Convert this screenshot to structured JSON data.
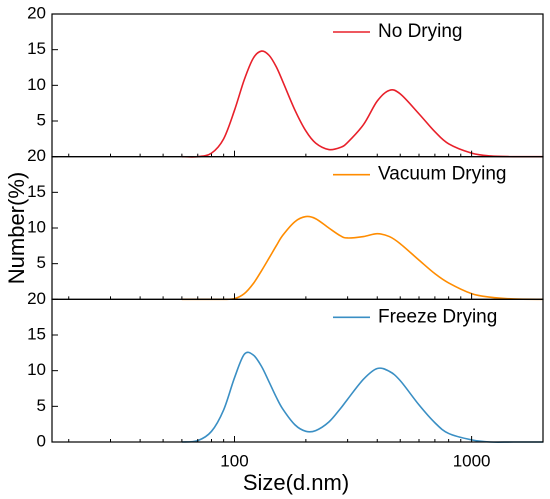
{
  "chart_data": {
    "type": "line",
    "xlabel": "Size(d.nm)",
    "ylabel": "Number(%)",
    "log_x": true,
    "xlim": [
      17,
      2000
    ],
    "xticks": [
      100,
      1000
    ],
    "xticks_minor": [
      20,
      30,
      40,
      50,
      60,
      70,
      80,
      90,
      200,
      300,
      400,
      500,
      600,
      700,
      800,
      900
    ],
    "x": [
      60,
      70,
      80,
      90,
      100,
      110,
      120,
      130,
      140,
      150,
      160,
      180,
      200,
      220,
      250,
      280,
      300,
      350,
      400,
      450,
      500,
      600,
      700,
      800,
      1000,
      1200,
      1500,
      2000
    ],
    "panels": [
      {
        "ylim": [
          0,
          20
        ],
        "yticks": [
          5,
          10,
          15,
          20
        ],
        "series": [
          {
            "name": "No Drying",
            "color": "#e8202a",
            "values": [
              0,
              0,
              0.5,
              2.5,
              6.5,
              10.8,
              13.8,
              14.8,
              14.2,
              12.6,
              10.5,
              6.5,
              3.6,
              1.9,
              1.0,
              1.3,
              2.0,
              4.5,
              7.8,
              9.3,
              8.8,
              6,
              3.5,
              1.8,
              0.5,
              0.1,
              0,
              0
            ]
          }
        ]
      },
      {
        "ylim": [
          0,
          20
        ],
        "yticks": [
          5,
          10,
          15,
          20
        ],
        "series": [
          {
            "name": "Vacuum Drying",
            "color": "#ff8c00",
            "values": [
              0,
              0,
              0,
              0,
              0.1,
              0.8,
              2.2,
              4,
              5.8,
              7.5,
              9,
              10.9,
              11.6,
              11.3,
              10,
              8.9,
              8.6,
              8.8,
              9.2,
              8.8,
              7.8,
              5.5,
              3.6,
              2.3,
              0.8,
              0.3,
              0.05,
              0
            ]
          }
        ]
      },
      {
        "ylim": [
          0,
          20
        ],
        "yticks": [
          0,
          5,
          10,
          15,
          20
        ],
        "series": [
          {
            "name": "Freeze Drying",
            "color": "#3a8fc4",
            "values": [
              0,
              0.2,
              1.5,
              4.5,
              9,
              12.3,
              12.2,
              10.6,
              8.4,
              6.3,
              4.6,
              2.4,
              1.5,
              1.6,
              2.8,
              4.7,
              6,
              8.8,
              10.3,
              9.9,
              8.6,
              5.2,
              2.7,
              1.2,
              0.3,
              0,
              0,
              0
            ]
          }
        ]
      }
    ]
  }
}
